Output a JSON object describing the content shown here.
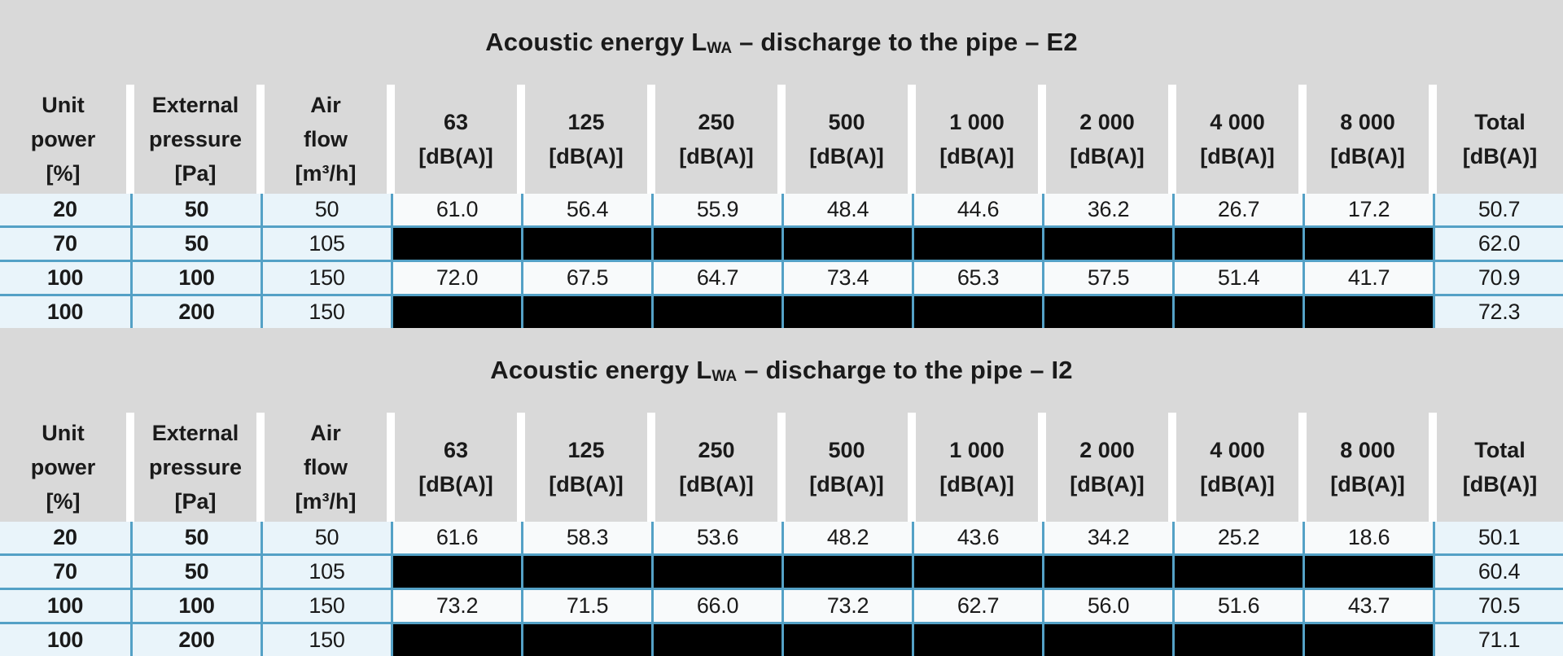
{
  "colors": {
    "band_gray": "#d9d9d9",
    "cell_blue": "#e9f4fa",
    "cell_white": "#f8fafb",
    "border_teal": "#54a1c6",
    "redacted_black": "#000000",
    "gap_white": "#ffffff",
    "text": "#1a1a1a"
  },
  "header_columns": [
    {
      "id": "unit-power",
      "lines": [
        "Unit",
        "power",
        "[%]"
      ]
    },
    {
      "id": "external-pressure",
      "lines": [
        "External",
        "pressure",
        "[Pa]"
      ]
    },
    {
      "id": "air-flow",
      "lines": [
        "Air",
        "flow",
        "[m³/h]"
      ]
    },
    {
      "id": "freq-63",
      "lines": [
        "63",
        "[dB(A)]"
      ]
    },
    {
      "id": "freq-125",
      "lines": [
        "125",
        "[dB(A)]"
      ]
    },
    {
      "id": "freq-250",
      "lines": [
        "250",
        "[dB(A)]"
      ]
    },
    {
      "id": "freq-500",
      "lines": [
        "500",
        "[dB(A)]"
      ]
    },
    {
      "id": "freq-1000",
      "lines": [
        "1 000",
        "[dB(A)]"
      ]
    },
    {
      "id": "freq-2000",
      "lines": [
        "2 000",
        "[dB(A)]"
      ]
    },
    {
      "id": "freq-4000",
      "lines": [
        "4 000",
        "[dB(A)]"
      ]
    },
    {
      "id": "freq-8000",
      "lines": [
        "8 000",
        "[dB(A)]"
      ]
    },
    {
      "id": "total",
      "lines": [
        "Total",
        "[dB(A)]"
      ]
    }
  ],
  "tables": [
    {
      "id": "E2",
      "title": {
        "text_before_sub": "Acoustic energy L",
        "subscript": "WA",
        "text_after_sub": " – discharge to the pipe – E2"
      },
      "rows": [
        {
          "unit_power": "20",
          "external_pressure": "50",
          "air_flow": "50",
          "redacted": false,
          "band_values": [
            "61.0",
            "56.4",
            "55.9",
            "48.4",
            "44.6",
            "36.2",
            "26.7",
            "17.2"
          ],
          "total": "50.7"
        },
        {
          "unit_power": "70",
          "external_pressure": "50",
          "air_flow": "105",
          "redacted": true,
          "band_values": [
            "",
            "",
            "",
            "",
            "",
            "",
            "",
            ""
          ],
          "total": "62.0"
        },
        {
          "unit_power": "100",
          "external_pressure": "100",
          "air_flow": "150",
          "redacted": false,
          "band_values": [
            "72.0",
            "67.5",
            "64.7",
            "73.4",
            "65.3",
            "57.5",
            "51.4",
            "41.7"
          ],
          "total": "70.9"
        },
        {
          "unit_power": "100",
          "external_pressure": "200",
          "air_flow": "150",
          "redacted": true,
          "band_values": [
            "",
            "",
            "",
            "",
            "",
            "",
            "",
            ""
          ],
          "total": "72.3"
        }
      ]
    },
    {
      "id": "I2",
      "title": {
        "text_before_sub": "Acoustic energy L",
        "subscript": "WA",
        "text_after_sub": " – discharge to the pipe – I2"
      },
      "rows": [
        {
          "unit_power": "20",
          "external_pressure": "50",
          "air_flow": "50",
          "redacted": false,
          "band_values": [
            "61.6",
            "58.3",
            "53.6",
            "48.2",
            "43.6",
            "34.2",
            "25.2",
            "18.6"
          ],
          "total": "50.1"
        },
        {
          "unit_power": "70",
          "external_pressure": "50",
          "air_flow": "105",
          "redacted": true,
          "band_values": [
            "",
            "",
            "",
            "",
            "",
            "",
            "",
            ""
          ],
          "total": "60.4"
        },
        {
          "unit_power": "100",
          "external_pressure": "100",
          "air_flow": "150",
          "redacted": false,
          "band_values": [
            "73.2",
            "71.5",
            "66.0",
            "73.2",
            "62.7",
            "56.0",
            "51.6",
            "43.7"
          ],
          "total": "70.5"
        },
        {
          "unit_power": "100",
          "external_pressure": "200",
          "air_flow": "150",
          "redacted": true,
          "band_values": [
            "",
            "",
            "",
            "",
            "",
            "",
            "",
            ""
          ],
          "total": "71.1"
        }
      ]
    }
  ]
}
